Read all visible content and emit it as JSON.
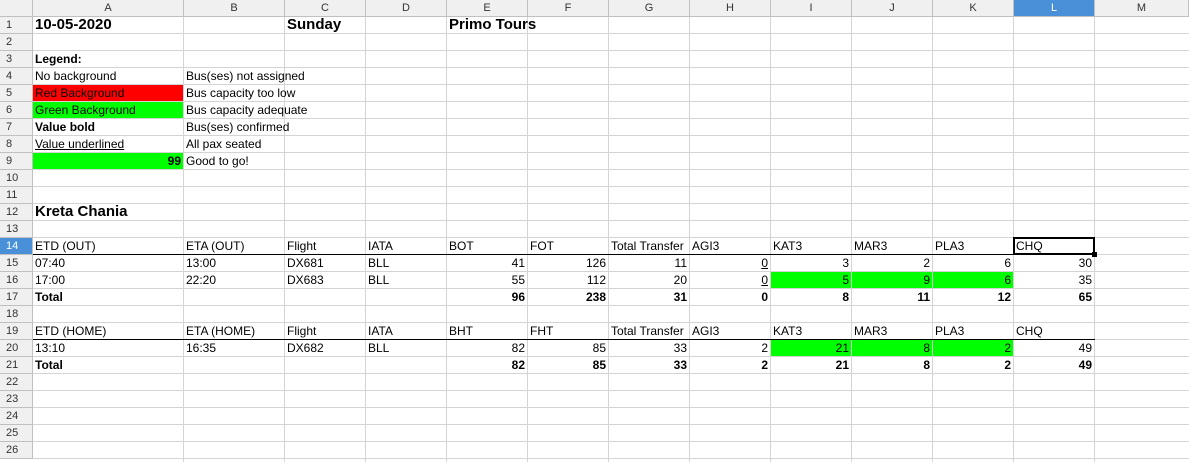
{
  "columns": [
    "A",
    "B",
    "C",
    "D",
    "E",
    "F",
    "G",
    "H",
    "I",
    "J",
    "K",
    "L",
    "M"
  ],
  "selected_column": "L",
  "rows": [
    "1",
    "2",
    "3",
    "4",
    "5",
    "6",
    "7",
    "8",
    "9",
    "10",
    "11",
    "12",
    "13",
    "14",
    "15",
    "16",
    "17",
    "18",
    "19",
    "20",
    "21",
    "22",
    "23",
    "24",
    "25",
    "26"
  ],
  "selected_row": "14",
  "header": {
    "date": "10-05-2020",
    "day": "Sunday",
    "company": "Primo Tours"
  },
  "legend": {
    "title": "Legend:",
    "items": [
      {
        "label": "No background",
        "desc": "Bus(ses) not assigned"
      },
      {
        "label": "Red Background",
        "desc": "Bus capacity too low"
      },
      {
        "label": "Green Background",
        "desc": "Bus capacity adequate"
      },
      {
        "label": "Value bold",
        "desc": "Bus(ses) confirmed"
      },
      {
        "label": "Value underlined",
        "desc": "All pax seated"
      },
      {
        "label": "99",
        "desc": "Good to go!"
      }
    ]
  },
  "section_title": "Kreta Chania",
  "out_table": {
    "headers": [
      "ETD (OUT)",
      "ETA (OUT)",
      "Flight",
      "IATA",
      "BOT",
      "FOT",
      "Total Transfer",
      "AGI3",
      "KAT3",
      "MAR3",
      "PLA3",
      "CHQ"
    ],
    "rows": [
      [
        "07:40",
        "13:00",
        "DX681",
        "BLL",
        "41",
        "126",
        "11",
        "0",
        "3",
        "2",
        "6",
        "30"
      ],
      [
        "17:00",
        "22:20",
        "DX683",
        "BLL",
        "55",
        "112",
        "20",
        "0",
        "5",
        "9",
        "6",
        "35"
      ]
    ],
    "total_label": "Total",
    "totals": [
      "96",
      "238",
      "31",
      "0",
      "8",
      "11",
      "12",
      "65"
    ]
  },
  "home_table": {
    "headers": [
      "ETD (HOME)",
      "ETA (HOME)",
      "Flight",
      "IATA",
      "BHT",
      "FHT",
      "Total Transfer",
      "AGI3",
      "KAT3",
      "MAR3",
      "PLA3",
      "CHQ"
    ],
    "rows": [
      [
        "13:10",
        "16:35",
        "DX682",
        "BLL",
        "82",
        "85",
        "33",
        "2",
        "21",
        "8",
        "2",
        "49"
      ]
    ],
    "total_label": "Total",
    "totals": [
      "82",
      "85",
      "33",
      "2",
      "21",
      "8",
      "2",
      "49"
    ]
  },
  "colors": {
    "red": "#ff0000",
    "green": "#00ff00",
    "selection": "#4a90d9"
  }
}
